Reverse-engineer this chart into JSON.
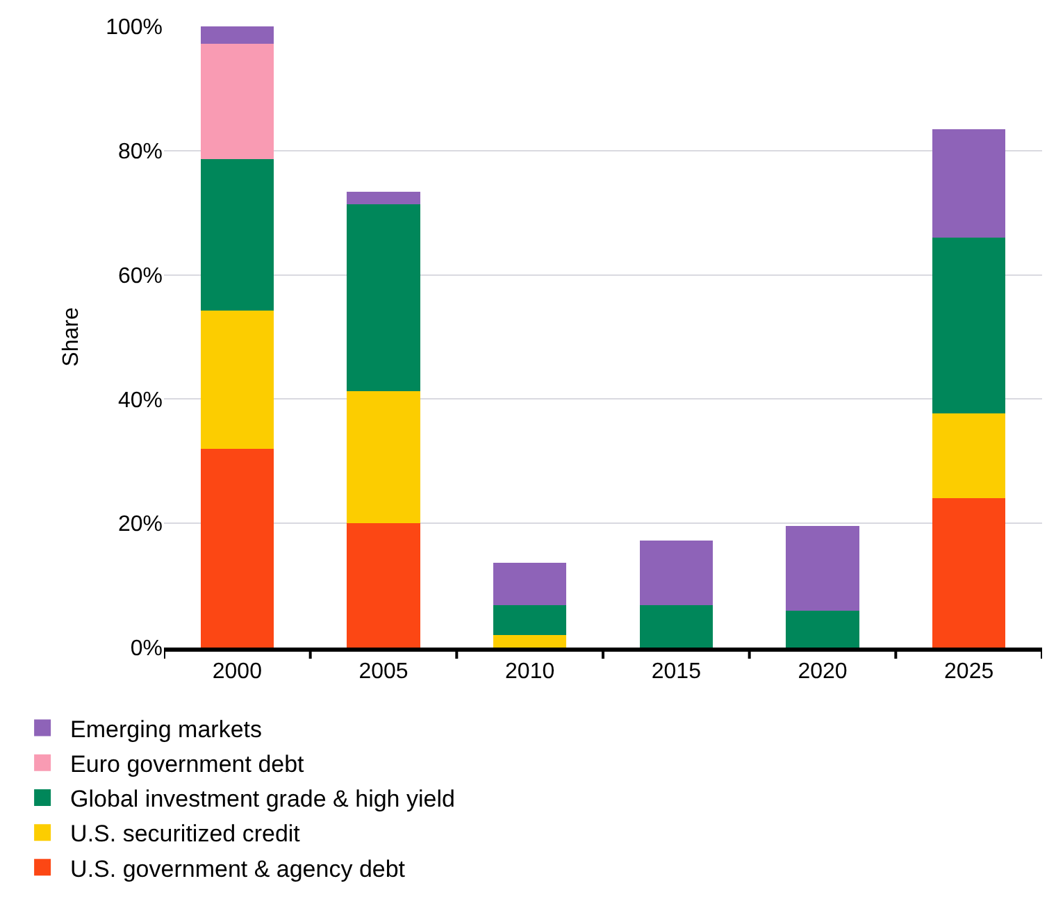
{
  "chart_data": {
    "type": "bar",
    "stacked": true,
    "ylabel": "Share",
    "categories": [
      "2000",
      "2005",
      "2010",
      "2015",
      "2020",
      "2025"
    ],
    "series": [
      {
        "name": "U.S. government & agency debt",
        "color": "#fc4714",
        "values": [
          32,
          20,
          0,
          0,
          0,
          24
        ]
      },
      {
        "name": "U.S. securitized credit",
        "color": "#fccd00",
        "values": [
          22.3,
          21.3,
          2,
          0,
          0,
          13.7
        ]
      },
      {
        "name": "Global investment grade & high yield",
        "color": "#00875a",
        "values": [
          24.3,
          30.1,
          4.8,
          6.8,
          5.9,
          28.3
        ]
      },
      {
        "name": "Euro government debt",
        "color": "#f99bb3",
        "values": [
          18.6,
          0,
          0,
          0,
          0,
          0
        ]
      },
      {
        "name": "Emerging markets",
        "color": "#8e63b8",
        "values": [
          2.8,
          2,
          6.9,
          10.4,
          13.7,
          17.5
        ]
      }
    ],
    "ylim": [
      0,
      100
    ],
    "yticks": [
      {
        "value": 0,
        "label": "0%"
      },
      {
        "value": 20,
        "label": "20%"
      },
      {
        "value": 40,
        "label": "40%"
      },
      {
        "value": 60,
        "label": "60%"
      },
      {
        "value": 80,
        "label": "80%"
      },
      {
        "value": 100,
        "label": "100%"
      }
    ],
    "grid": "y",
    "legend": "bottom"
  }
}
